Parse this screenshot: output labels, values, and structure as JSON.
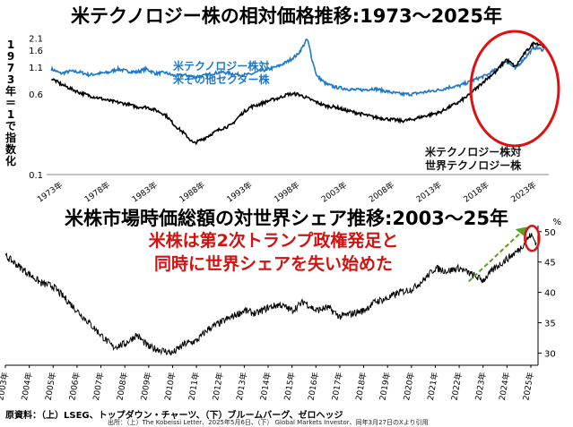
{
  "chart_data": [
    {
      "type": "line",
      "title": "米テクノロジー株の相対価格推移:1973〜2025年",
      "ylabel": "1973年＝1で指数化",
      "yscale": "log",
      "ylim": [
        0.1,
        2.2
      ],
      "yticks": [
        "2.1",
        "1.6",
        "1.1",
        "0.6",
        "0.1"
      ],
      "ytick_values": [
        2.1,
        1.6,
        1.1,
        0.6,
        0.1
      ],
      "xticks": [
        "1973年",
        "1978年",
        "1983年",
        "1988年",
        "1993年",
        "1998年",
        "2003年",
        "2008年",
        "2013年",
        "2018年",
        "2023年"
      ],
      "xtick_years": [
        1973,
        1978,
        1983,
        1988,
        1993,
        1998,
        2003,
        2008,
        2013,
        2018,
        2023
      ],
      "xlim": [
        1972.5,
        2025.5
      ],
      "series": [
        {
          "name": "米テクノロジー株対\n米その他セクター株",
          "color": "#1c78c8",
          "x": [
            1973,
            1974,
            1975,
            1976,
            1977,
            1978,
            1979,
            1980,
            1981,
            1982,
            1983,
            1984,
            1985,
            1986,
            1987,
            1988,
            1989,
            1990,
            1991,
            1992,
            1993,
            1994,
            1995,
            1996,
            1997,
            1998,
            1999,
            1999.5,
            2000,
            2000.5,
            2001,
            2002,
            2003,
            2004,
            2005,
            2006,
            2007,
            2008,
            2009,
            2010,
            2011,
            2012,
            2013,
            2014,
            2015,
            2016,
            2017,
            2018,
            2019,
            2020,
            2021,
            2022,
            2023,
            2024,
            2025
          ],
          "y": [
            1.05,
            0.95,
            1.0,
            0.98,
            0.92,
            0.95,
            0.97,
            1.05,
            1.0,
            0.98,
            1.05,
            0.95,
            0.97,
            0.9,
            0.92,
            0.88,
            0.9,
            0.95,
            0.98,
            0.95,
            0.92,
            0.93,
            1.0,
            1.05,
            1.12,
            1.25,
            1.45,
            1.7,
            2.05,
            1.3,
            0.9,
            0.75,
            0.7,
            0.68,
            0.66,
            0.66,
            0.68,
            0.65,
            0.62,
            0.6,
            0.6,
            0.62,
            0.64,
            0.66,
            0.7,
            0.72,
            0.78,
            0.85,
            0.92,
            1.05,
            1.25,
            1.05,
            1.35,
            1.7,
            1.6
          ]
        },
        {
          "name": "米テクノロジー株対\n世界テクノロジー株",
          "color": "#000000",
          "x": [
            1973,
            1974,
            1975,
            1976,
            1977,
            1978,
            1979,
            1980,
            1981,
            1982,
            1983,
            1984,
            1985,
            1986,
            1987,
            1988,
            1989,
            1990,
            1991,
            1992,
            1993,
            1994,
            1995,
            1996,
            1997,
            1998,
            1999,
            2000,
            2001,
            2002,
            2003,
            2004,
            2005,
            2006,
            2007,
            2008,
            2009,
            2010,
            2011,
            2012,
            2013,
            2014,
            2015,
            2016,
            2017,
            2018,
            2019,
            2020,
            2021,
            2022,
            2023,
            2024,
            2025
          ],
          "y": [
            0.85,
            0.75,
            0.68,
            0.62,
            0.58,
            0.55,
            0.52,
            0.5,
            0.48,
            0.45,
            0.45,
            0.42,
            0.38,
            0.3,
            0.25,
            0.2,
            0.22,
            0.25,
            0.28,
            0.3,
            0.38,
            0.45,
            0.48,
            0.52,
            0.55,
            0.6,
            0.6,
            0.55,
            0.5,
            0.46,
            0.45,
            0.42,
            0.4,
            0.38,
            0.36,
            0.35,
            0.34,
            0.33,
            0.34,
            0.36,
            0.38,
            0.4,
            0.45,
            0.5,
            0.58,
            0.7,
            0.85,
            1.0,
            1.3,
            1.1,
            1.5,
            1.9,
            1.75
          ]
        }
      ],
      "annotations": [
        "米テクノロジー株対\n米その他セクター株",
        "米テクノロジー株対\n世界テクノロジー株"
      ]
    },
    {
      "type": "line",
      "title": "米株市場時価総額の対世界シェア推移:2003〜25年",
      "yunit": "%",
      "ylim": [
        28,
        51
      ],
      "yticks": [
        "50",
        "45",
        "40",
        "35",
        "30"
      ],
      "ytick_values": [
        50,
        45,
        40,
        35,
        30
      ],
      "xticks": [
        "2003年",
        "2004年",
        "2005年",
        "2006年",
        "2007年",
        "2008年",
        "2009年",
        "2010年",
        "2011年",
        "2012年",
        "2013年",
        "2014年",
        "2015年",
        "2016年",
        "2017年",
        "2018年",
        "2019年",
        "2020年",
        "2021年",
        "2022年",
        "2023年",
        "2024年",
        "2025年"
      ],
      "xtick_years": [
        2003,
        2004,
        2005,
        2006,
        2007,
        2008,
        2009,
        2010,
        2011,
        2012,
        2013,
        2014,
        2015,
        2016,
        2017,
        2018,
        2019,
        2020,
        2021,
        2022,
        2023,
        2024,
        2025
      ],
      "xlim": [
        2003,
        2025.3
      ],
      "series": [
        {
          "name": "",
          "color": "#000000",
          "x": [
            2003,
            2003.5,
            2004,
            2004.5,
            2005,
            2005.5,
            2006,
            2006.5,
            2007,
            2007.5,
            2008,
            2008.5,
            2009,
            2009.5,
            2010,
            2010.5,
            2011,
            2011.5,
            2012,
            2012.5,
            2013,
            2013.5,
            2014,
            2014.5,
            2015,
            2015.5,
            2016,
            2016.5,
            2017,
            2017.5,
            2018,
            2018.5,
            2019,
            2019.5,
            2020,
            2020.5,
            2021,
            2021.5,
            2022,
            2022.5,
            2023,
            2023.5,
            2024,
            2024.5,
            2025,
            2025.25
          ],
          "y": [
            46,
            44.5,
            43,
            41.5,
            41,
            39,
            37,
            35,
            33,
            31,
            31.5,
            33,
            31,
            30.5,
            30,
            31.5,
            32,
            34,
            35,
            36,
            37,
            36.5,
            37.5,
            38,
            37,
            38.5,
            37,
            37.5,
            36,
            36.5,
            37,
            38.5,
            39,
            40,
            40.5,
            42,
            44,
            43.5,
            44,
            43,
            42,
            44,
            45.5,
            47,
            49.5,
            48
          ]
        }
      ],
      "annotation": "米株は第2次トランプ政権発足と\n同時に世界シェアを失い始めた"
    }
  ],
  "source": "原資料：（上）LSEG、トップダウン・チャーツ、（下）ブルームバーグ、ゼロヘッジ",
  "source_note": "出所：（上）The Kobeissi Letter、2025年5月6日、（下） Global Markets Investor、同年3月27日のXより引用"
}
